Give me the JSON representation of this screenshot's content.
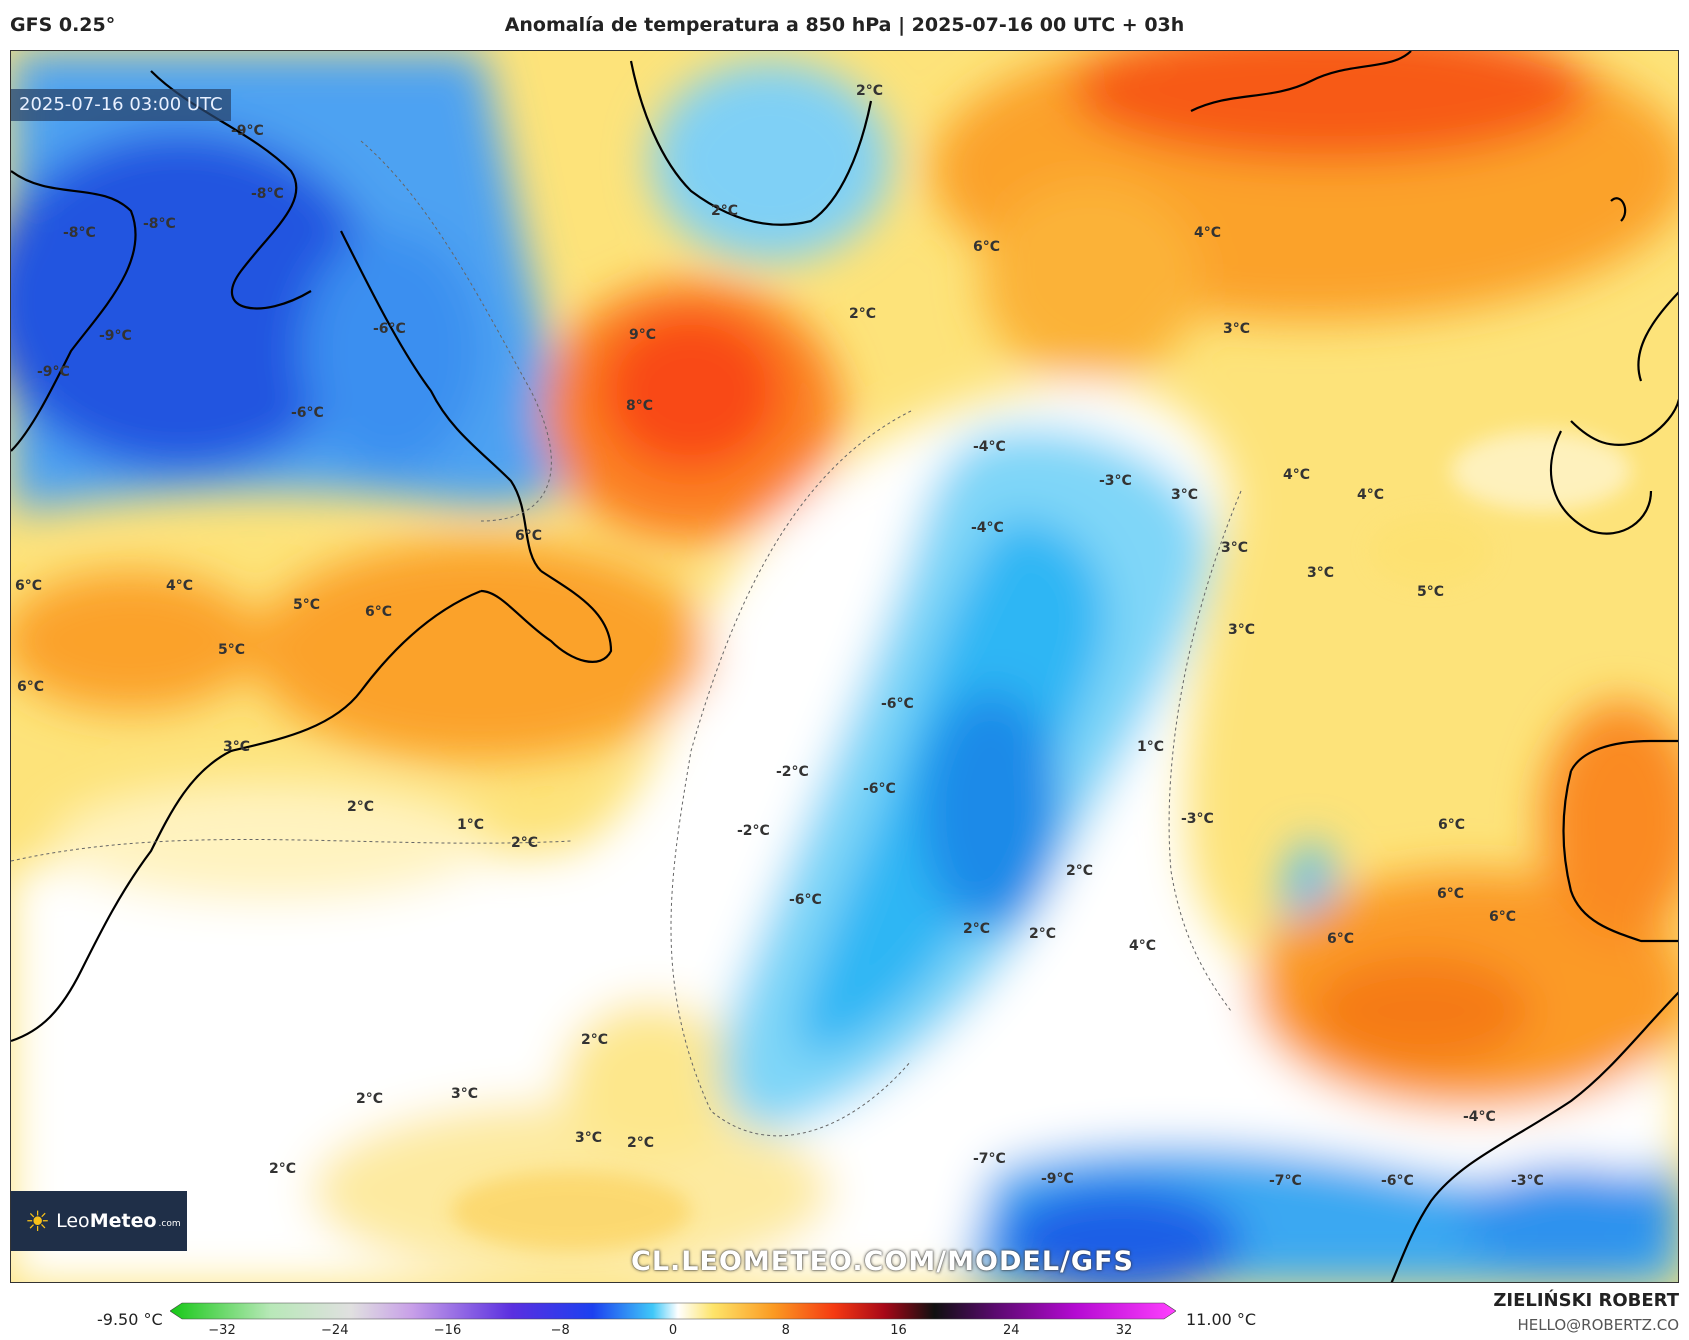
{
  "header": {
    "model": "GFS 0.25°",
    "title": "Anomalía de temperatura a 850 hPa | 2025-07-16 00 UTC + 03h"
  },
  "map": {
    "timestamp": "2025-07-16 03:00 UTC",
    "watermark": "CL.LEOMETEO.COM/MODEL/GFS",
    "logo": {
      "brand_a": "Leo",
      "brand_b": "Meteo",
      "suffix": ".com"
    },
    "labels": [
      {
        "text": "-9°C"
      },
      {
        "text": "-8°C"
      },
      {
        "text": "-8°C"
      },
      {
        "text": "-8°C"
      },
      {
        "text": "-9°C"
      },
      {
        "text": "-9°C"
      },
      {
        "text": "-6°C"
      },
      {
        "text": "-6°C"
      },
      {
        "text": "2°C"
      },
      {
        "text": "2°C"
      },
      {
        "text": "6°C"
      },
      {
        "text": "4°C"
      },
      {
        "text": "9°C"
      },
      {
        "text": "8°C"
      },
      {
        "text": "2°C"
      },
      {
        "text": "3°C"
      },
      {
        "text": "-4°C"
      },
      {
        "text": "-3°C"
      },
      {
        "text": "-4°C"
      },
      {
        "text": "4°C"
      },
      {
        "text": "3°C"
      },
      {
        "text": "4°C"
      },
      {
        "text": "3°C"
      },
      {
        "text": "3°C"
      },
      {
        "text": "5°C"
      },
      {
        "text": "3°C"
      },
      {
        "text": "6°C"
      },
      {
        "text": "6°C"
      },
      {
        "text": "4°C"
      },
      {
        "text": "5°C"
      },
      {
        "text": "6°C"
      },
      {
        "text": "5°C"
      },
      {
        "text": "6°C"
      },
      {
        "text": "3°C"
      },
      {
        "text": "-6°C"
      },
      {
        "text": "-2°C"
      },
      {
        "text": "-6°C"
      },
      {
        "text": "1°C"
      },
      {
        "text": "2°C"
      },
      {
        "text": "1°C"
      },
      {
        "text": "2°C"
      },
      {
        "text": "-2°C"
      },
      {
        "text": "-3°C"
      },
      {
        "text": "2°C"
      },
      {
        "text": "-6°C"
      },
      {
        "text": "2°C"
      },
      {
        "text": "2°C"
      },
      {
        "text": "4°C"
      },
      {
        "text": "6°C"
      },
      {
        "text": "6°C"
      },
      {
        "text": "6°C"
      },
      {
        "text": "6°C"
      },
      {
        "text": "2°C"
      },
      {
        "text": "2°C"
      },
      {
        "text": "2°C"
      },
      {
        "text": "3°C"
      },
      {
        "text": "3°C"
      },
      {
        "text": "2°C"
      },
      {
        "text": "-7°C"
      },
      {
        "text": "-9°C"
      },
      {
        "text": "-4°C"
      },
      {
        "text": "-7°C"
      },
      {
        "text": "-6°C"
      },
      {
        "text": "-3°C"
      }
    ]
  },
  "legend": {
    "min_label": "-9.50 °C",
    "max_label": "11.00 °C",
    "ticks": [
      "−32",
      "−24",
      "−16",
      "−8",
      "0",
      "8",
      "16",
      "24",
      "32"
    ]
  },
  "author": {
    "name": "ZIELIŃSKI ROBERT",
    "email": "HELLO@ROBERTZ.CO"
  }
}
